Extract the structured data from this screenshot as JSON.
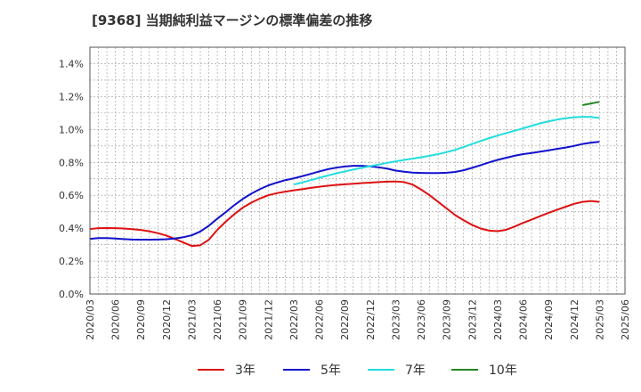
{
  "chart_data": {
    "type": "line",
    "title": "[9368]  当期純利益マージンの標準偏差の推移",
    "xlabel": "",
    "ylabel": "",
    "ylim": [
      0,
      1.5
    ],
    "y_ticks": [
      "0.0%",
      "0.2%",
      "0.4%",
      "0.6%",
      "0.8%",
      "1.0%",
      "1.2%",
      "1.4%"
    ],
    "y_tick_values": [
      0,
      0.2,
      0.4,
      0.6,
      0.8,
      1.0,
      1.2,
      1.4
    ],
    "x_ticks": [
      "2020/03",
      "2020/06",
      "2020/09",
      "2020/12",
      "2021/03",
      "2021/06",
      "2021/09",
      "2021/12",
      "2022/03",
      "2022/06",
      "2022/09",
      "2022/12",
      "2023/03",
      "2023/06",
      "2023/09",
      "2023/12",
      "2024/03",
      "2024/06",
      "2024/09",
      "2024/12",
      "2025/03",
      "2025/06"
    ],
    "grid": true,
    "legend_position": "bottom",
    "series": [
      {
        "name": "3年",
        "color": "#dd1111",
        "x": [
          "2020/03",
          "2020/04",
          "2020/05",
          "2020/06",
          "2020/07",
          "2020/08",
          "2020/09",
          "2020/10",
          "2020/11",
          "2020/12",
          "2021/01",
          "2021/02",
          "2021/03",
          "2021/04",
          "2021/05",
          "2021/06",
          "2021/07",
          "2021/08",
          "2021/09",
          "2021/10",
          "2021/11",
          "2021/12",
          "2022/01",
          "2022/02",
          "2022/03",
          "2022/04",
          "2022/05",
          "2022/06",
          "2022/07",
          "2022/08",
          "2022/09",
          "2022/10",
          "2022/11",
          "2022/12",
          "2023/01",
          "2023/02",
          "2023/03",
          "2023/04",
          "2023/05",
          "2023/06",
          "2023/07",
          "2023/08",
          "2023/09",
          "2023/10",
          "2023/11",
          "2023/12",
          "2024/01",
          "2024/02",
          "2024/03",
          "2024/04",
          "2024/05",
          "2024/06",
          "2024/07",
          "2024/08",
          "2024/09",
          "2024/10",
          "2024/11",
          "2024/12",
          "2025/01",
          "2025/02",
          "2025/03"
        ],
        "values": [
          0.395,
          0.4,
          0.401,
          0.4,
          0.398,
          0.394,
          0.389,
          0.381,
          0.37,
          0.355,
          0.335,
          0.313,
          0.292,
          0.296,
          0.33,
          0.39,
          0.44,
          0.485,
          0.525,
          0.555,
          0.58,
          0.6,
          0.613,
          0.622,
          0.63,
          0.637,
          0.645,
          0.652,
          0.658,
          0.663,
          0.667,
          0.67,
          0.674,
          0.677,
          0.68,
          0.683,
          0.684,
          0.68,
          0.665,
          0.635,
          0.6,
          0.56,
          0.52,
          0.48,
          0.448,
          0.42,
          0.398,
          0.385,
          0.382,
          0.39,
          0.41,
          0.432,
          0.452,
          0.473,
          0.493,
          0.512,
          0.53,
          0.548,
          0.56,
          0.565,
          0.56
        ]
      },
      {
        "name": "5年",
        "color": "#1111cc",
        "x": [
          "2020/03",
          "2020/04",
          "2020/05",
          "2020/06",
          "2020/07",
          "2020/08",
          "2020/09",
          "2020/10",
          "2020/11",
          "2020/12",
          "2021/01",
          "2021/02",
          "2021/03",
          "2021/04",
          "2021/05",
          "2021/06",
          "2021/07",
          "2021/08",
          "2021/09",
          "2021/10",
          "2021/11",
          "2021/12",
          "2022/01",
          "2022/02",
          "2022/03",
          "2022/04",
          "2022/05",
          "2022/06",
          "2022/07",
          "2022/08",
          "2022/09",
          "2022/10",
          "2022/11",
          "2022/12",
          "2023/01",
          "2023/02",
          "2023/03",
          "2023/04",
          "2023/05",
          "2023/06",
          "2023/07",
          "2023/08",
          "2023/09",
          "2023/10",
          "2023/11",
          "2023/12",
          "2024/01",
          "2024/02",
          "2024/03",
          "2024/04",
          "2024/05",
          "2024/06",
          "2024/07",
          "2024/08",
          "2024/09",
          "2024/10",
          "2024/11",
          "2024/12",
          "2025/01",
          "2025/02",
          "2025/03"
        ],
        "values": [
          0.335,
          0.34,
          0.34,
          0.337,
          0.334,
          0.331,
          0.33,
          0.33,
          0.331,
          0.333,
          0.337,
          0.345,
          0.357,
          0.38,
          0.415,
          0.458,
          0.498,
          0.54,
          0.578,
          0.61,
          0.637,
          0.66,
          0.677,
          0.692,
          0.703,
          0.716,
          0.73,
          0.745,
          0.758,
          0.768,
          0.775,
          0.779,
          0.779,
          0.776,
          0.77,
          0.762,
          0.75,
          0.743,
          0.738,
          0.736,
          0.735,
          0.735,
          0.737,
          0.742,
          0.752,
          0.767,
          0.783,
          0.8,
          0.815,
          0.828,
          0.84,
          0.85,
          0.857,
          0.865,
          0.873,
          0.882,
          0.89,
          0.9,
          0.912,
          0.92,
          0.925
        ]
      },
      {
        "name": "7年",
        "color": "#22dddd",
        "x": [
          "2022/03",
          "2022/04",
          "2022/05",
          "2022/06",
          "2022/07",
          "2022/08",
          "2022/09",
          "2022/10",
          "2022/11",
          "2022/12",
          "2023/01",
          "2023/02",
          "2023/03",
          "2023/04",
          "2023/05",
          "2023/06",
          "2023/07",
          "2023/08",
          "2023/09",
          "2023/10",
          "2023/11",
          "2023/12",
          "2024/01",
          "2024/02",
          "2024/03",
          "2024/04",
          "2024/05",
          "2024/06",
          "2024/07",
          "2024/08",
          "2024/09",
          "2024/10",
          "2024/11",
          "2024/12",
          "2025/01",
          "2025/02",
          "2025/03"
        ],
        "values": [
          0.665,
          0.678,
          0.692,
          0.706,
          0.72,
          0.733,
          0.745,
          0.756,
          0.767,
          0.777,
          0.787,
          0.797,
          0.806,
          0.815,
          0.823,
          0.831,
          0.84,
          0.85,
          0.862,
          0.876,
          0.893,
          0.912,
          0.93,
          0.947,
          0.963,
          0.978,
          0.992,
          1.007,
          1.022,
          1.037,
          1.049,
          1.06,
          1.068,
          1.074,
          1.077,
          1.076,
          1.07
        ]
      },
      {
        "name": "10年",
        "color": "#228822",
        "x": [
          "2025/01",
          "2025/03"
        ],
        "values": [
          1.148,
          1.168
        ]
      }
    ]
  }
}
